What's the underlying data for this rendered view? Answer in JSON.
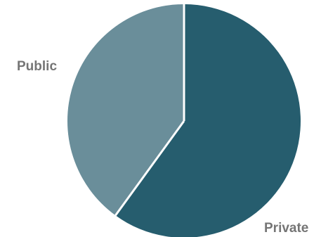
{
  "chart_data": {
    "type": "pie",
    "title": "",
    "slices": [
      {
        "label": "Private",
        "value": 60,
        "color": "#265d6e"
      },
      {
        "label": "Public",
        "value": 40,
        "color": "#6a8e9a"
      }
    ],
    "start_angle_deg": 0,
    "direction": "clockwise",
    "separator_color": "#ffffff",
    "legend": "none",
    "label_color": "#757575"
  }
}
